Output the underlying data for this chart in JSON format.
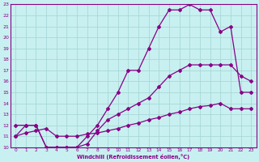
{
  "xlabel": "Windchill (Refroidissement éolien,°C)",
  "bg_color": "#c8f0f0",
  "grid_color": "#a8d8d8",
  "line_color": "#880088",
  "xlim": [
    -0.5,
    23.5
  ],
  "ylim": [
    10,
    23
  ],
  "xticks": [
    0,
    1,
    2,
    3,
    4,
    5,
    6,
    7,
    8,
    9,
    10,
    11,
    12,
    13,
    14,
    15,
    16,
    17,
    18,
    19,
    20,
    21,
    22,
    23
  ],
  "yticks": [
    10,
    11,
    12,
    13,
    14,
    15,
    16,
    17,
    18,
    19,
    20,
    21,
    22,
    23
  ],
  "line1_x": [
    0,
    1,
    2,
    3,
    4,
    5,
    6,
    7,
    8,
    9,
    10,
    11,
    12,
    13,
    14,
    15,
    16,
    17,
    18,
    19,
    20,
    21,
    22,
    23
  ],
  "line1_y": [
    11.0,
    11.3,
    11.5,
    11.7,
    11.0,
    11.0,
    11.0,
    11.2,
    11.3,
    11.5,
    11.7,
    12.0,
    12.2,
    12.5,
    12.7,
    13.0,
    13.2,
    13.5,
    13.7,
    13.8,
    14.0,
    13.5,
    13.5,
    13.5
  ],
  "line2_x": [
    0,
    1,
    2,
    3,
    4,
    5,
    6,
    7,
    8,
    9,
    10,
    11,
    12,
    13,
    14,
    15,
    16,
    17,
    18,
    19,
    20,
    21,
    22,
    23
  ],
  "line2_y": [
    12.0,
    12.0,
    12.0,
    10.0,
    10.0,
    10.0,
    10.0,
    10.3,
    11.5,
    12.5,
    13.0,
    13.5,
    14.0,
    14.5,
    15.5,
    16.5,
    17.0,
    17.5,
    17.5,
    17.5,
    17.5,
    17.5,
    16.5,
    16.0
  ],
  "line3_x": [
    0,
    1,
    2,
    3,
    4,
    5,
    6,
    7,
    8,
    9,
    10,
    11,
    12,
    13,
    14,
    15,
    16,
    17,
    18,
    19,
    20,
    21,
    22,
    23
  ],
  "line3_y": [
    11.0,
    12.0,
    12.0,
    10.0,
    10.0,
    10.0,
    10.0,
    11.0,
    12.0,
    13.5,
    15.0,
    17.0,
    17.0,
    19.0,
    21.0,
    22.5,
    22.5,
    23.0,
    22.5,
    22.5,
    20.5,
    21.0,
    15.0,
    15.0
  ]
}
